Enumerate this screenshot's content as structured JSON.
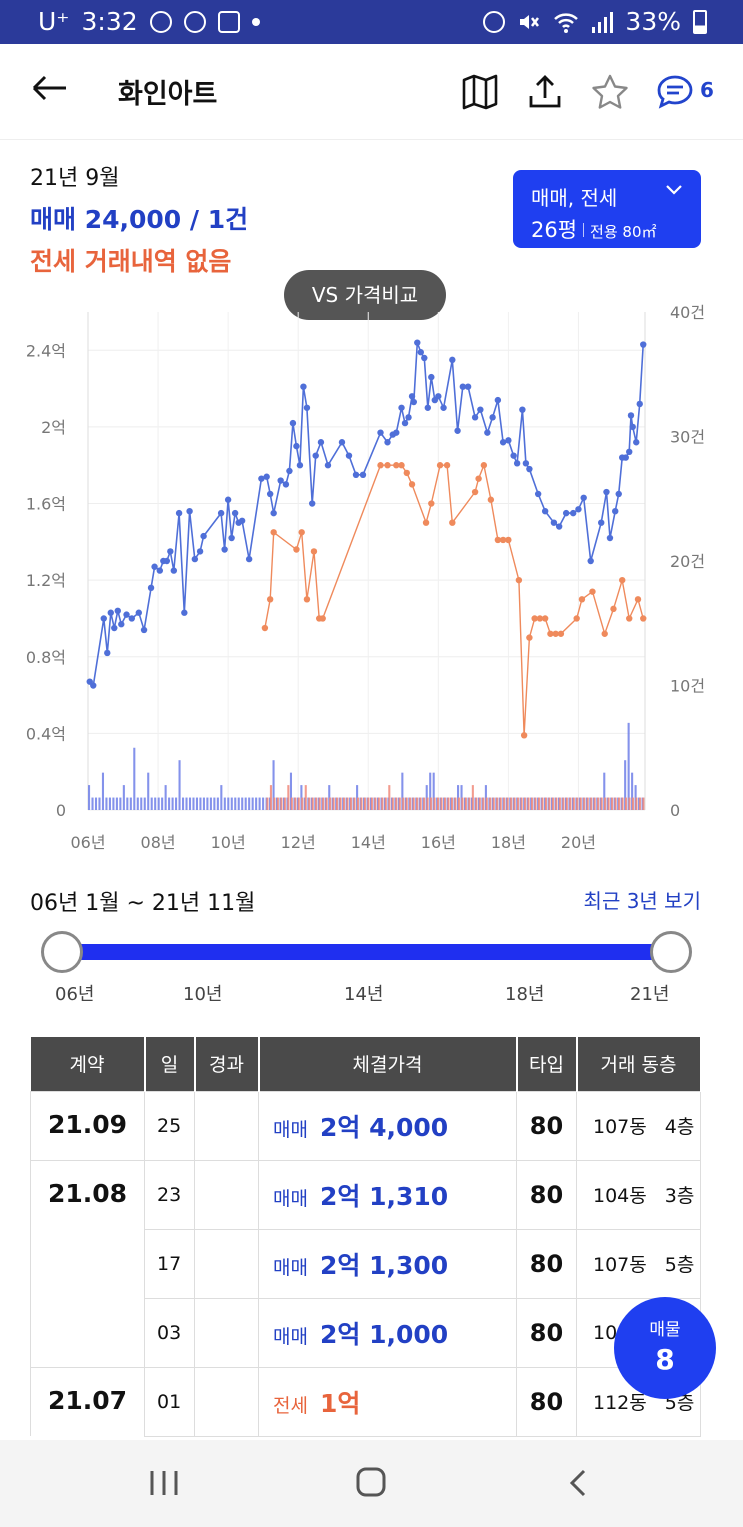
{
  "status_bar": {
    "carrier": "U⁺",
    "time": "3:32",
    "battery": "33%",
    "icons": [
      "blog-icon",
      "timer-icon",
      "app-icon",
      "notification-dot",
      "alarm-icon",
      "mute-icon",
      "wifi-icon",
      "signal-icon",
      "battery-icon"
    ]
  },
  "app_bar": {
    "title": "화인아트",
    "comment_count": "6",
    "icons": [
      "back-arrow-icon",
      "map-icon",
      "share-icon",
      "star-icon",
      "comment-icon"
    ]
  },
  "summary": {
    "date": "21년 9월",
    "sale_text": "매매 24,000 / 1건",
    "jeonse_text": "전세 거래내역 없음",
    "sale_color": "#2240c4",
    "jeonse_color": "#e8643c"
  },
  "type_selector": {
    "deal_types": "매매, 전세",
    "pyeong": "26평",
    "area": "전용 80㎡",
    "color": "#1f3ff0"
  },
  "vs_button": {
    "label": "VS 가격비교"
  },
  "chart_data": {
    "type": "line",
    "title": "",
    "y_left_ticks": [
      "0",
      "0.4억",
      "0.8억",
      "1.2억",
      "1.6억",
      "2억",
      "2.4억"
    ],
    "y_left_range": [
      0,
      2.6
    ],
    "y_right_ticks": [
      "0",
      "10건",
      "20건",
      "30건",
      "40건"
    ],
    "y_right_range": [
      0,
      40
    ],
    "x_ticks": [
      "06년",
      "08년",
      "10년",
      "12년",
      "14년",
      "16년",
      "18년",
      "20년"
    ],
    "x_range": [
      2006.0,
      2021.9
    ],
    "grid": true,
    "series": [
      {
        "color": "#4f6fd8",
        "points": [
          [
            2006.05,
            0.67
          ],
          [
            2006.15,
            0.65
          ],
          [
            2006.45,
            1.0
          ],
          [
            2006.55,
            0.82
          ],
          [
            2006.65,
            1.03
          ],
          [
            2006.75,
            0.95
          ],
          [
            2006.85,
            1.04
          ],
          [
            2006.95,
            0.97
          ],
          [
            2007.1,
            1.02
          ],
          [
            2007.25,
            1.0
          ],
          [
            2007.45,
            1.03
          ],
          [
            2007.6,
            0.94
          ],
          [
            2007.8,
            1.16
          ],
          [
            2007.9,
            1.27
          ],
          [
            2008.05,
            1.25
          ],
          [
            2008.15,
            1.3
          ],
          [
            2008.25,
            1.3
          ],
          [
            2008.35,
            1.35
          ],
          [
            2008.45,
            1.25
          ],
          [
            2008.6,
            1.55
          ],
          [
            2008.75,
            1.03
          ],
          [
            2008.9,
            1.56
          ],
          [
            2009.05,
            1.31
          ],
          [
            2009.2,
            1.35
          ],
          [
            2009.3,
            1.43
          ],
          [
            2009.8,
            1.55
          ],
          [
            2009.9,
            1.36
          ],
          [
            2010.0,
            1.62
          ],
          [
            2010.1,
            1.42
          ],
          [
            2010.2,
            1.55
          ],
          [
            2010.3,
            1.5
          ],
          [
            2010.4,
            1.51
          ],
          [
            2010.6,
            1.31
          ],
          [
            2010.95,
            1.73
          ],
          [
            2011.1,
            1.74
          ],
          [
            2011.2,
            1.65
          ],
          [
            2011.3,
            1.55
          ],
          [
            2011.5,
            1.72
          ],
          [
            2011.65,
            1.7
          ],
          [
            2011.75,
            1.77
          ],
          [
            2011.85,
            2.02
          ],
          [
            2011.95,
            1.9
          ],
          [
            2012.05,
            1.8
          ],
          [
            2012.15,
            2.21
          ],
          [
            2012.25,
            2.1
          ],
          [
            2012.4,
            1.6
          ],
          [
            2012.5,
            1.85
          ],
          [
            2012.65,
            1.92
          ],
          [
            2012.85,
            1.8
          ],
          [
            2013.25,
            1.92
          ],
          [
            2013.45,
            1.85
          ],
          [
            2013.65,
            1.75
          ],
          [
            2013.85,
            1.75
          ],
          [
            2014.35,
            1.97
          ],
          [
            2014.55,
            1.92
          ],
          [
            2014.7,
            1.96
          ],
          [
            2014.8,
            1.97
          ],
          [
            2014.95,
            2.1
          ],
          [
            2015.05,
            2.02
          ],
          [
            2015.15,
            2.05
          ],
          [
            2015.25,
            2.16
          ],
          [
            2015.3,
            2.13
          ],
          [
            2015.4,
            2.44
          ],
          [
            2015.5,
            2.39
          ],
          [
            2015.6,
            2.36
          ],
          [
            2015.7,
            2.1
          ],
          [
            2015.8,
            2.26
          ],
          [
            2015.9,
            2.14
          ],
          [
            2016.0,
            2.16
          ],
          [
            2016.15,
            2.1
          ],
          [
            2016.4,
            2.35
          ],
          [
            2016.55,
            1.98
          ],
          [
            2016.7,
            2.21
          ],
          [
            2016.85,
            2.21
          ],
          [
            2017.05,
            2.05
          ],
          [
            2017.2,
            2.09
          ],
          [
            2017.4,
            1.97
          ],
          [
            2017.55,
            2.05
          ],
          [
            2017.7,
            2.14
          ],
          [
            2017.85,
            1.92
          ],
          [
            2018.0,
            1.93
          ],
          [
            2018.15,
            1.85
          ],
          [
            2018.25,
            1.81
          ],
          [
            2018.4,
            2.09
          ],
          [
            2018.5,
            1.81
          ],
          [
            2018.6,
            1.78
          ],
          [
            2018.85,
            1.65
          ],
          [
            2019.05,
            1.56
          ],
          [
            2019.3,
            1.5
          ],
          [
            2019.45,
            1.48
          ],
          [
            2019.65,
            1.55
          ],
          [
            2019.85,
            1.55
          ],
          [
            2020.0,
            1.57
          ],
          [
            2020.15,
            1.63
          ],
          [
            2020.35,
            1.3
          ],
          [
            2020.65,
            1.5
          ],
          [
            2020.8,
            1.66
          ],
          [
            2020.9,
            1.42
          ],
          [
            2021.05,
            1.56
          ],
          [
            2021.15,
            1.65
          ],
          [
            2021.25,
            1.84
          ],
          [
            2021.35,
            1.84
          ],
          [
            2021.45,
            1.87
          ],
          [
            2021.5,
            2.06
          ],
          [
            2021.55,
            2.0
          ],
          [
            2021.65,
            1.92
          ],
          [
            2021.75,
            2.12
          ],
          [
            2021.85,
            2.43
          ]
        ]
      },
      {
        "color": "#ef8a5c",
        "points": [
          [
            2011.05,
            0.95
          ],
          [
            2011.2,
            1.1
          ],
          [
            2011.3,
            1.45
          ],
          [
            2011.95,
            1.36
          ],
          [
            2012.1,
            1.45
          ],
          [
            2012.25,
            1.1
          ],
          [
            2012.45,
            1.35
          ],
          [
            2012.6,
            1.0
          ],
          [
            2012.7,
            1.0
          ],
          [
            2014.35,
            1.8
          ],
          [
            2014.55,
            1.8
          ],
          [
            2014.8,
            1.8
          ],
          [
            2014.95,
            1.8
          ],
          [
            2015.1,
            1.76
          ],
          [
            2015.25,
            1.7
          ],
          [
            2015.65,
            1.5
          ],
          [
            2015.8,
            1.6
          ],
          [
            2016.05,
            1.8
          ],
          [
            2016.25,
            1.8
          ],
          [
            2016.4,
            1.5
          ],
          [
            2017.05,
            1.66
          ],
          [
            2017.15,
            1.73
          ],
          [
            2017.3,
            1.8
          ],
          [
            2017.5,
            1.62
          ],
          [
            2017.7,
            1.41
          ],
          [
            2017.85,
            1.41
          ],
          [
            2018.0,
            1.41
          ],
          [
            2018.3,
            1.2
          ],
          [
            2018.45,
            0.39
          ],
          [
            2018.6,
            0.9
          ],
          [
            2018.75,
            1.0
          ],
          [
            2018.9,
            1.0
          ],
          [
            2019.05,
            1.0
          ],
          [
            2019.2,
            0.92
          ],
          [
            2019.35,
            0.92
          ],
          [
            2019.5,
            0.92
          ],
          [
            2019.95,
            1.0
          ],
          [
            2020.1,
            1.1
          ],
          [
            2020.4,
            1.14
          ],
          [
            2020.75,
            0.92
          ],
          [
            2021.0,
            1.05
          ],
          [
            2021.25,
            1.2
          ],
          [
            2021.45,
            1.0
          ],
          [
            2021.7,
            1.1
          ],
          [
            2021.85,
            1.0
          ]
        ]
      }
    ],
    "volume_series": [
      {
        "color": "#6f7fe8",
        "values": [
          2,
          1,
          1,
          1,
          3,
          1,
          1,
          1,
          1,
          1,
          2,
          1,
          1,
          5,
          1,
          1,
          1,
          3,
          1,
          1,
          1,
          1,
          2,
          1,
          1,
          1,
          4,
          1,
          1,
          1,
          1,
          1,
          1,
          1,
          1,
          1,
          1,
          1,
          2,
          1,
          1,
          1,
          1,
          1,
          1,
          1,
          1,
          1,
          1,
          1,
          1,
          1,
          1,
          4,
          1,
          1,
          1,
          1,
          3,
          1,
          1,
          2,
          1,
          1,
          1,
          1,
          1,
          1,
          1,
          2,
          1,
          1,
          1,
          1,
          1,
          1,
          1,
          2,
          1,
          1,
          1,
          1,
          1,
          1,
          1,
          1,
          1,
          1,
          1,
          1,
          3,
          1,
          1,
          1,
          1,
          1,
          1,
          2,
          3,
          3,
          1,
          1,
          1,
          1,
          1,
          1,
          2,
          2,
          1,
          1,
          1,
          1,
          1,
          1,
          2,
          1,
          1,
          1,
          1,
          1,
          1,
          1,
          1,
          1,
          1,
          1,
          1,
          1,
          1,
          1,
          1,
          1,
          1,
          1,
          1,
          1,
          1,
          1,
          1,
          1,
          1,
          1,
          1,
          1,
          1,
          1,
          1,
          1,
          3,
          1,
          1,
          1,
          1,
          1,
          4,
          7,
          3,
          2,
          1,
          1
        ]
      },
      {
        "color": "#f08a7a",
        "values": [
          0,
          0,
          0,
          0,
          0,
          0,
          0,
          0,
          0,
          0,
          0,
          0,
          0,
          0,
          0,
          0,
          0,
          0,
          0,
          0,
          0,
          0,
          0,
          0,
          0,
          0,
          0,
          0,
          0,
          0,
          0,
          0,
          0,
          0,
          0,
          0,
          0,
          0,
          0,
          0,
          0,
          0,
          0,
          0,
          0,
          0,
          0,
          0,
          0,
          0,
          0,
          1,
          2,
          1,
          1,
          1,
          1,
          2,
          1,
          1,
          1,
          1,
          2,
          1,
          1,
          1,
          1,
          1,
          1,
          1,
          1,
          1,
          1,
          1,
          1,
          1,
          1,
          1,
          1,
          1,
          1,
          1,
          1,
          1,
          1,
          1,
          2,
          1,
          1,
          1,
          1,
          1,
          1,
          1,
          1,
          1,
          1,
          1,
          1,
          1,
          1,
          1,
          1,
          1,
          1,
          1,
          1,
          1,
          1,
          1,
          2,
          1,
          1,
          1,
          1,
          1,
          1,
          1,
          1,
          1,
          1,
          1,
          1,
          1,
          1,
          1,
          1,
          1,
          1,
          1,
          1,
          1,
          1,
          1,
          1,
          1,
          1,
          1,
          1,
          1,
          1,
          1,
          1,
          1,
          1,
          1,
          1,
          1,
          1,
          1,
          1,
          1,
          1,
          1,
          1,
          1,
          1,
          1,
          1,
          1
        ]
      }
    ]
  },
  "range": {
    "label": "06년 1월 ~ 21년 11월",
    "recent_link": "최근 3년 보기",
    "ticks": [
      "06년",
      "10년",
      "14년",
      "18년",
      "21년"
    ],
    "start_fraction": 0.0,
    "end_fraction": 1.0
  },
  "table": {
    "headers": [
      "계약",
      "일",
      "경과",
      "체결가격",
      "타입",
      "거래 동층"
    ],
    "rows": [
      {
        "month": "21.09",
        "day": "25",
        "elapsed": "",
        "kind": "매매",
        "amount": "2억 4,000",
        "type": "80",
        "dong": "107동",
        "floor": "4층",
        "deal": "sale"
      },
      {
        "month": "21.08",
        "day": "23",
        "elapsed": "",
        "kind": "매매",
        "amount": "2억 1,310",
        "type": "80",
        "dong": "104동",
        "floor": "3층",
        "deal": "sale"
      },
      {
        "month": "",
        "day": "17",
        "elapsed": "",
        "kind": "매매",
        "amount": "2억 1,300",
        "type": "80",
        "dong": "107동",
        "floor": "5층",
        "deal": "sale"
      },
      {
        "month": "",
        "day": "03",
        "elapsed": "",
        "kind": "매매",
        "amount": "2억 1,000",
        "type": "80",
        "dong": "10",
        "floor": "",
        "deal": "sale"
      },
      {
        "month": "21.07",
        "day": "01",
        "elapsed": "",
        "kind": "전세",
        "amount": "1억",
        "type": "80",
        "dong": "112동",
        "floor": "5층",
        "deal": "jeonse"
      }
    ]
  },
  "listing_fab": {
    "label": "매물",
    "count": "8"
  },
  "nav_bar": {
    "icons": [
      "recent-apps-icon",
      "home-icon",
      "back-icon"
    ]
  }
}
